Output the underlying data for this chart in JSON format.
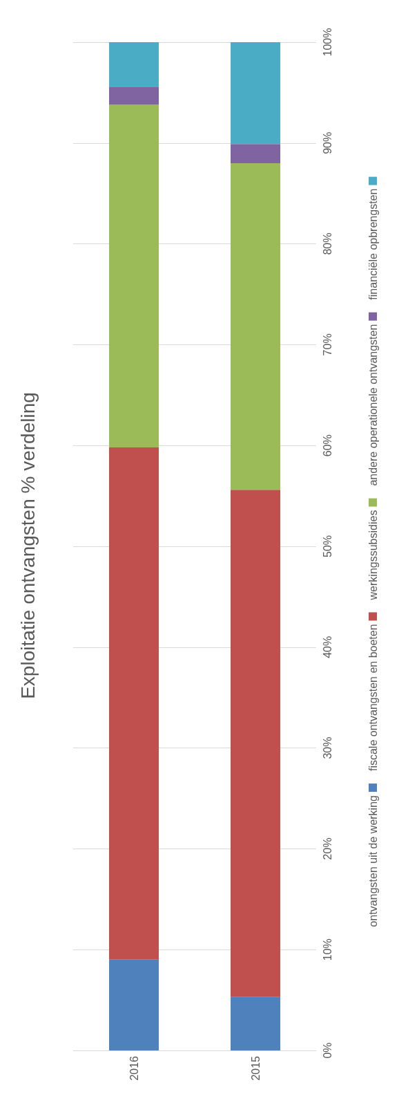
{
  "chart_data": {
    "type": "bar",
    "title": "Exploitatie ontvangsten % verdeling",
    "stacked": true,
    "categories": [
      "2016",
      "2015"
    ],
    "series": [
      {
        "name": "ontvangsten uit de werking",
        "color": "#4f81bd",
        "values": [
          9.0,
          5.3
        ]
      },
      {
        "name": "fiscale ontvangsten en boeten",
        "color": "#c0504d",
        "values": [
          50.8,
          50.3
        ]
      },
      {
        "name": "werkingssubsidies",
        "color": "#9bbb59",
        "values": [
          34.0,
          32.4
        ]
      },
      {
        "name": "andere operationele ontvangsten",
        "color": "#8064a2",
        "values": [
          1.8,
          1.9
        ]
      },
      {
        "name": "financiële opbrengsten",
        "color": "#4bacc6",
        "values": [
          4.4,
          10.1
        ]
      }
    ],
    "ylim": [
      0,
      100
    ],
    "yticks": [
      {
        "value": 0,
        "label": "0%"
      },
      {
        "value": 10,
        "label": "10%"
      },
      {
        "value": 20,
        "label": "20%"
      },
      {
        "value": 30,
        "label": "30%"
      },
      {
        "value": 40,
        "label": "40%"
      },
      {
        "value": 50,
        "label": "50%"
      },
      {
        "value": 60,
        "label": "60%"
      },
      {
        "value": 70,
        "label": "70%"
      },
      {
        "value": 80,
        "label": "80%"
      },
      {
        "value": 90,
        "label": "90%"
      },
      {
        "value": 100,
        "label": "100%"
      }
    ],
    "grid": "y",
    "legend": "right"
  }
}
